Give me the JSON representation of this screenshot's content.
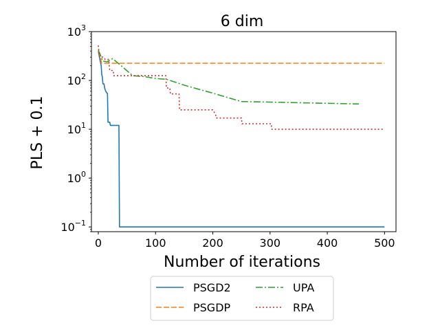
{
  "chart_data": {
    "type": "line",
    "title": "6 dim",
    "xlabel": "Number of iterations",
    "ylabel": "PLS + 0.1",
    "xlim": [
      -12,
      520
    ],
    "ylim": [
      0.08,
      1000
    ],
    "yscale": "log",
    "x_ticks": [
      0,
      100,
      200,
      300,
      400,
      500
    ],
    "y_ticks": [
      {
        "value": 0.1,
        "base": "10",
        "exp": "−1"
      },
      {
        "value": 1,
        "base": "10",
        "exp": "0"
      },
      {
        "value": 10,
        "base": "10",
        "exp": "1"
      },
      {
        "value": 100,
        "base": "10",
        "exp": "2"
      },
      {
        "value": 1000,
        "base": "10",
        "exp": "3"
      }
    ],
    "legend_position": "below the plot",
    "series": [
      {
        "name": "PSGD2",
        "color": "#1f77b4",
        "dash": "solid",
        "points": [
          [
            0,
            400
          ],
          [
            2,
            300
          ],
          [
            3,
            260
          ],
          [
            5,
            200
          ],
          [
            6,
            130
          ],
          [
            7,
            120
          ],
          [
            8,
            85
          ],
          [
            10,
            85
          ],
          [
            11,
            70
          ],
          [
            13,
            60
          ],
          [
            15,
            55
          ],
          [
            16,
            55
          ],
          [
            17,
            14
          ],
          [
            20,
            14
          ],
          [
            21,
            12
          ],
          [
            36,
            12
          ],
          [
            37,
            0.1
          ],
          [
            500,
            0.1
          ]
        ]
      },
      {
        "name": "PSGDP",
        "color": "#ff7f0e",
        "dash": "dashed",
        "points": [
          [
            0,
            400
          ],
          [
            2,
            350
          ],
          [
            4,
            300
          ],
          [
            5,
            240
          ],
          [
            6,
            225
          ],
          [
            500,
            225
          ]
        ]
      },
      {
        "name": "UPA",
        "color": "#2ca02c",
        "dash": "dashdot",
        "points": [
          [
            0,
            420
          ],
          [
            8,
            250
          ],
          [
            15,
            240
          ],
          [
            25,
            280
          ],
          [
            40,
            200
          ],
          [
            60,
            125
          ],
          [
            80,
            120
          ],
          [
            100,
            110
          ],
          [
            120,
            105
          ],
          [
            150,
            80
          ],
          [
            200,
            55
          ],
          [
            250,
            37
          ],
          [
            300,
            36
          ],
          [
            400,
            34
          ],
          [
            455,
            33
          ]
        ]
      },
      {
        "name": "RPA",
        "color": "#d62728",
        "dash": "dotted",
        "points": [
          [
            0,
            520
          ],
          [
            2,
            300
          ],
          [
            8,
            300
          ],
          [
            12,
            270
          ],
          [
            18,
            270
          ],
          [
            20,
            160
          ],
          [
            26,
            160
          ],
          [
            27,
            125
          ],
          [
            118,
            125
          ],
          [
            119,
            70
          ],
          [
            125,
            70
          ],
          [
            126,
            53
          ],
          [
            141,
            53
          ],
          [
            142,
            25
          ],
          [
            200,
            25
          ],
          [
            205,
            20
          ],
          [
            206,
            17
          ],
          [
            250,
            17
          ],
          [
            251,
            13
          ],
          [
            302,
            13
          ],
          [
            303,
            10
          ],
          [
            500,
            10
          ]
        ]
      }
    ]
  }
}
